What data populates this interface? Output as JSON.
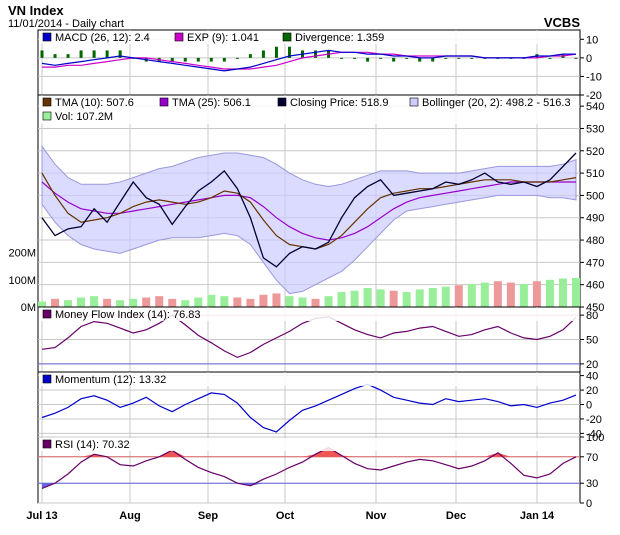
{
  "chart_data": {
    "type": "line",
    "title": "VN Index",
    "subtitle": "11/01/2014 - Daily chart",
    "brand": "VCBS",
    "x_months": [
      "Jul 13",
      "Aug",
      "Sep",
      "Oct",
      "Nov",
      "Dec",
      "Jan 14"
    ],
    "colors": {
      "grid": "#c8c8c8",
      "macd_line": "#0000cc",
      "macd_signal": "#cc00cc",
      "macd_hist": "#006600",
      "tma10": "#663300",
      "tma25": "#9900cc",
      "close": "#000033",
      "bollinger_fill": "#ccccff",
      "bollinger_edge": "#9999dd",
      "vol_up": "#99ee99",
      "vol_down": "#ee9999",
      "mfi": "#660066",
      "momentum": "#0000cc",
      "rsi": "#660066",
      "rsi_fill": "#ee5555",
      "ref_line_red": "#dd6666",
      "ref_line_blue": "#6666dd"
    },
    "macd": {
      "legend": [
        {
          "label": "MACD (26, 12): 2.4",
          "color": "#0000cc"
        },
        {
          "label": "EXP (9): 1.041",
          "color": "#cc00cc"
        },
        {
          "label": "Divergence: 1.359",
          "color": "#006600"
        }
      ],
      "ylim": [
        -20,
        15
      ],
      "yticks": [
        "10",
        "0",
        "-10",
        "-20"
      ],
      "ytick_values": [
        10,
        0,
        -10,
        -20
      ],
      "line": [
        -3,
        -4,
        -3,
        -2,
        -1,
        0,
        1,
        0,
        -1,
        -2,
        -3,
        -4,
        -5,
        -6,
        -7,
        -6,
        -5,
        -3,
        -1,
        1,
        2,
        3,
        4,
        3,
        3,
        2,
        2,
        1,
        1,
        0,
        0,
        1,
        1,
        1,
        0,
        0,
        0,
        0,
        1,
        1,
        2,
        2
      ],
      "signal": [
        -5,
        -5,
        -4,
        -4,
        -3,
        -2,
        -1,
        0,
        0,
        -1,
        -2,
        -3,
        -4,
        -5,
        -6,
        -6,
        -6,
        -5,
        -4,
        -2,
        0,
        1,
        2,
        3,
        3,
        3,
        2,
        2,
        1,
        1,
        1,
        1,
        1,
        1,
        0,
        0,
        0,
        0,
        0,
        1,
        1,
        2
      ]
    },
    "price": {
      "legend": [
        {
          "label": "TMA (10): 507.6",
          "color": "#663300"
        },
        {
          "label": "TMA (25): 506.1",
          "color": "#9900cc"
        },
        {
          "label": "Closing Price: 518.9",
          "color": "#000033"
        },
        {
          "label": "Bollinger (20, 2): 498.2 - 516.3",
          "color": "#ccccff"
        },
        {
          "label": "Vol: 107.2M",
          "color": "#99ee99"
        }
      ],
      "ylim": [
        450,
        545
      ],
      "yticks": [
        "540",
        "530",
        "520",
        "510",
        "500",
        "490",
        "480",
        "470",
        "460",
        "450"
      ],
      "ytick_values": [
        540,
        530,
        520,
        510,
        500,
        490,
        480,
        470,
        460,
        450
      ],
      "vol_ticks": [
        "200M",
        "100M",
        "0M"
      ],
      "vol_tick_values": [
        200,
        100,
        0
      ],
      "vol_max": 350,
      "close": [
        490,
        482,
        485,
        486,
        494,
        488,
        497,
        506,
        499,
        496,
        487,
        495,
        502,
        506,
        511,
        503,
        490,
        472,
        468,
        474,
        477,
        476,
        479,
        490,
        499,
        504,
        507,
        500,
        501,
        502,
        503,
        506,
        505,
        507,
        510,
        506,
        505,
        506,
        504,
        507,
        513,
        519
      ],
      "tma10": [
        510,
        500,
        492,
        488,
        489,
        490,
        492,
        495,
        497,
        498,
        497,
        496,
        497,
        499,
        502,
        501,
        497,
        489,
        482,
        478,
        477,
        476,
        478,
        482,
        488,
        494,
        499,
        501,
        502,
        503,
        503,
        504,
        505,
        506,
        507,
        507,
        507,
        506,
        506,
        506,
        507,
        508
      ],
      "tma25": [
        506,
        501,
        497,
        494,
        493,
        492,
        492,
        493,
        494,
        495,
        496,
        497,
        498,
        499,
        500,
        500,
        499,
        495,
        490,
        486,
        483,
        481,
        480,
        481,
        483,
        486,
        490,
        494,
        497,
        499,
        500,
        501,
        502,
        503,
        504,
        505,
        506,
        506,
        506,
        506,
        506,
        506
      ],
      "boll_upper": [
        522,
        514,
        508,
        505,
        505,
        505,
        506,
        508,
        510,
        512,
        513,
        515,
        517,
        518,
        519,
        519,
        518,
        517,
        514,
        510,
        507,
        505,
        504,
        505,
        507,
        509,
        511,
        511,
        511,
        510,
        510,
        510,
        510,
        511,
        512,
        513,
        513,
        513,
        513,
        513,
        514,
        516
      ],
      "boll_lower": [
        496,
        488,
        482,
        478,
        476,
        475,
        474,
        476,
        478,
        480,
        481,
        481,
        481,
        482,
        483,
        482,
        478,
        470,
        462,
        456,
        457,
        460,
        463,
        466,
        471,
        477,
        483,
        489,
        493,
        494,
        495,
        496,
        497,
        498,
        499,
        500,
        500,
        500,
        500,
        499,
        499,
        498
      ],
      "volume": [
        20,
        30,
        25,
        35,
        40,
        30,
        25,
        30,
        35,
        40,
        30,
        25,
        35,
        45,
        40,
        35,
        30,
        45,
        50,
        40,
        35,
        30,
        40,
        55,
        60,
        70,
        65,
        60,
        55,
        65,
        70,
        75,
        80,
        85,
        90,
        95,
        90,
        85,
        95,
        100,
        105,
        107
      ]
    },
    "mfi": {
      "legend": [
        {
          "label": "Money Flow Index (14): 76.83",
          "color": "#660066"
        }
      ],
      "ylim": [
        10,
        90
      ],
      "yticks": [
        "80",
        "50",
        "20"
      ],
      "ytick_values": [
        80,
        50,
        20
      ],
      "ref_high": 80,
      "ref_low": 20,
      "values": [
        38,
        40,
        52,
        66,
        72,
        70,
        64,
        58,
        62,
        70,
        80,
        68,
        55,
        46,
        36,
        28,
        34,
        44,
        52,
        60,
        70,
        76,
        78,
        70,
        62,
        56,
        52,
        58,
        60,
        64,
        66,
        60,
        54,
        56,
        62,
        66,
        58,
        52,
        50,
        54,
        62,
        77
      ]
    },
    "momentum": {
      "legend": [
        {
          "label": "Momentum (12): 13.32",
          "color": "#0000cc"
        }
      ],
      "ylim": [
        -45,
        45
      ],
      "yticks": [
        "40",
        "20",
        "0",
        "-20",
        "-40"
      ],
      "ytick_values": [
        40,
        20,
        0,
        -20,
        -40
      ],
      "values": [
        -18,
        -12,
        -4,
        8,
        12,
        6,
        -4,
        2,
        10,
        -2,
        -10,
        0,
        8,
        16,
        14,
        2,
        -18,
        -32,
        -38,
        -22,
        -8,
        -2,
        6,
        14,
        22,
        28,
        20,
        10,
        6,
        2,
        0,
        8,
        4,
        6,
        8,
        4,
        -2,
        0,
        -4,
        2,
        6,
        13
      ]
    },
    "rsi": {
      "legend": [
        {
          "label": "RSI (14): 70.32",
          "color": "#660066"
        }
      ],
      "ylim": [
        0,
        100
      ],
      "yticks": [
        "100",
        "70",
        "30",
        "0"
      ],
      "ytick_values": [
        100,
        70,
        30,
        0
      ],
      "ref_high": 70,
      "ref_low": 30,
      "values": [
        22,
        30,
        44,
        62,
        74,
        70,
        58,
        56,
        64,
        70,
        80,
        66,
        54,
        46,
        40,
        30,
        26,
        36,
        44,
        54,
        62,
        74,
        84,
        72,
        60,
        52,
        50,
        56,
        62,
        66,
        64,
        58,
        52,
        56,
        64,
        76,
        60,
        42,
        38,
        44,
        60,
        70
      ]
    }
  }
}
